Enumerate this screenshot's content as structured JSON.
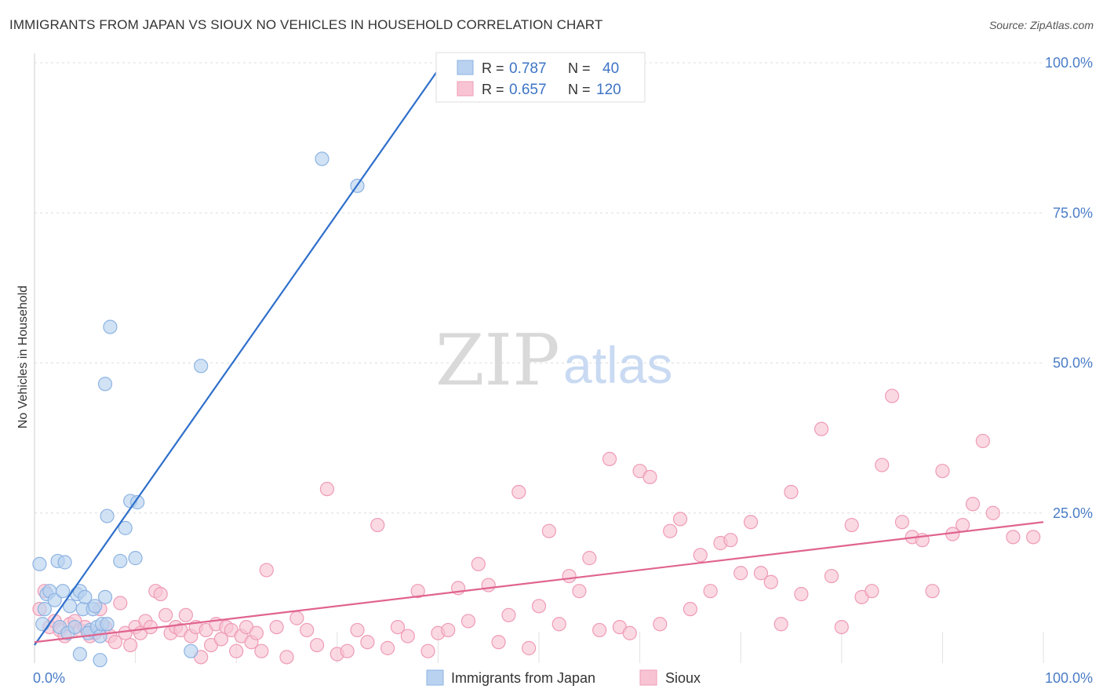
{
  "title": "IMMIGRANTS FROM JAPAN VS SIOUX NO VEHICLES IN HOUSEHOLD CORRELATION CHART",
  "source": "Source: ZipAtlas.com",
  "watermark": {
    "zip": "ZIP",
    "atlas": "atlas"
  },
  "colors": {
    "blue_fill": "#b9d2f0",
    "blue_stroke": "#8db3e2",
    "blue_line": "#2f6fcb",
    "pink_fill": "#f8c4d4",
    "pink_stroke": "#ef9bb6",
    "pink_line": "#e0648f",
    "grid": "#dcdcdc",
    "axis_text": "#4a7cc7"
  },
  "stats": [
    {
      "r_label": "R =",
      "r_value": "0.787",
      "n_label": "N =",
      "n_value": "40"
    },
    {
      "r_label": "R =",
      "r_value": "0.657",
      "n_label": "N =",
      "n_value": "120"
    }
  ],
  "chart_data": {
    "type": "scatter",
    "title": "IMMIGRANTS FROM JAPAN VS SIOUX NO VEHICLES IN HOUSEHOLD CORRELATION CHART",
    "xlabel": "",
    "ylabel": "No Vehicles in Household",
    "xlim": [
      0,
      100
    ],
    "ylim": [
      0,
      100
    ],
    "x_tick_labels": [
      "0.0%",
      "100.0%"
    ],
    "y_tick_labels": [
      "100.0%",
      "75.0%",
      "50.0%",
      "25.0%"
    ],
    "y_tick_values": [
      100,
      75,
      50,
      25
    ],
    "grid": true,
    "legend_position": "bottom",
    "series": [
      {
        "name": "Immigrants from Japan",
        "color": "blue",
        "points": [
          [
            0.5,
            16.5
          ],
          [
            1.0,
            9.0
          ],
          [
            1.2,
            11.5
          ],
          [
            1.5,
            12.0
          ],
          [
            2.0,
            10.5
          ],
          [
            2.3,
            17.0
          ],
          [
            2.5,
            6.0
          ],
          [
            2.8,
            12.0
          ],
          [
            3.0,
            16.8
          ],
          [
            3.3,
            5.0
          ],
          [
            3.5,
            9.5
          ],
          [
            4.0,
            6.0
          ],
          [
            4.2,
            11.5
          ],
          [
            4.5,
            12.0
          ],
          [
            4.8,
            9.0
          ],
          [
            4.5,
            1.5
          ],
          [
            5.0,
            11.0
          ],
          [
            5.5,
            5.5
          ],
          [
            5.3,
            5.0
          ],
          [
            5.8,
            9.0
          ],
          [
            6.0,
            9.5
          ],
          [
            6.2,
            6.0
          ],
          [
            6.5,
            0.5
          ],
          [
            6.5,
            4.5
          ],
          [
            6.7,
            6.5
          ],
          [
            7.0,
            46.5
          ],
          [
            7.2,
            24.5
          ],
          [
            7.0,
            11.0
          ],
          [
            7.2,
            6.5
          ],
          [
            7.5,
            56.0
          ],
          [
            8.5,
            17.0
          ],
          [
            9.0,
            22.5
          ],
          [
            9.5,
            27.0
          ],
          [
            10.0,
            17.5
          ],
          [
            10.2,
            26.8
          ],
          [
            15.5,
            2.0
          ],
          [
            16.5,
            49.5
          ],
          [
            28.5,
            84.0
          ],
          [
            32.0,
            79.5
          ],
          [
            0.8,
            6.5
          ]
        ],
        "trend": [
          [
            0,
            3.0
          ],
          [
            40.5,
            100
          ]
        ]
      },
      {
        "name": "Sioux",
        "color": "pink",
        "points": [
          [
            0.5,
            9.0
          ],
          [
            1.0,
            12.0
          ],
          [
            1.5,
            6.0
          ],
          [
            2.0,
            7.0
          ],
          [
            2.5,
            5.5
          ],
          [
            3.0,
            4.5
          ],
          [
            3.5,
            6.5
          ],
          [
            4.0,
            7.0
          ],
          [
            4.5,
            5.5
          ],
          [
            5.0,
            6.0
          ],
          [
            5.5,
            4.5
          ],
          [
            6.0,
            5.0
          ],
          [
            6.5,
            9.0
          ],
          [
            7.0,
            6.0
          ],
          [
            7.5,
            4.5
          ],
          [
            8.0,
            3.5
          ],
          [
            8.5,
            10.0
          ],
          [
            9.0,
            5.0
          ],
          [
            9.5,
            3.0
          ],
          [
            10.0,
            6.0
          ],
          [
            10.5,
            5.0
          ],
          [
            11.0,
            7.0
          ],
          [
            11.5,
            6.0
          ],
          [
            12.0,
            12.0
          ],
          [
            12.5,
            11.5
          ],
          [
            13.0,
            8.0
          ],
          [
            13.5,
            5.0
          ],
          [
            14.0,
            6.0
          ],
          [
            14.5,
            5.5
          ],
          [
            15.0,
            8.0
          ],
          [
            15.5,
            4.5
          ],
          [
            16.0,
            6.0
          ],
          [
            16.5,
            1.0
          ],
          [
            17.0,
            5.5
          ],
          [
            17.5,
            3.0
          ],
          [
            18.0,
            6.5
          ],
          [
            18.5,
            4.0
          ],
          [
            19.0,
            6.0
          ],
          [
            19.5,
            5.5
          ],
          [
            20.0,
            2.0
          ],
          [
            20.5,
            4.5
          ],
          [
            21.0,
            6.0
          ],
          [
            21.5,
            3.5
          ],
          [
            22.0,
            5.0
          ],
          [
            22.5,
            2.0
          ],
          [
            23.0,
            15.5
          ],
          [
            24.0,
            6.0
          ],
          [
            25.0,
            1.0
          ],
          [
            26.0,
            7.5
          ],
          [
            27.0,
            5.5
          ],
          [
            28.0,
            3.0
          ],
          [
            29.0,
            29.0
          ],
          [
            30.0,
            1.5
          ],
          [
            31.0,
            2.0
          ],
          [
            32.0,
            5.5
          ],
          [
            33.0,
            3.5
          ],
          [
            34.0,
            23.0
          ],
          [
            35.0,
            2.5
          ],
          [
            36.0,
            6.0
          ],
          [
            37.0,
            4.5
          ],
          [
            38.0,
            12.0
          ],
          [
            39.0,
            2.0
          ],
          [
            40.0,
            5.0
          ],
          [
            41.0,
            5.5
          ],
          [
            42.0,
            12.5
          ],
          [
            43.0,
            7.0
          ],
          [
            44.0,
            16.5
          ],
          [
            45.0,
            13.0
          ],
          [
            46.0,
            3.5
          ],
          [
            47.0,
            8.0
          ],
          [
            48.0,
            28.5
          ],
          [
            49.0,
            2.5
          ],
          [
            50.0,
            9.5
          ],
          [
            51.0,
            22.0
          ],
          [
            52.0,
            6.5
          ],
          [
            53.0,
            14.5
          ],
          [
            54.0,
            12.0
          ],
          [
            55.0,
            17.5
          ],
          [
            56.0,
            5.5
          ],
          [
            57.0,
            34.0
          ],
          [
            58.0,
            6.0
          ],
          [
            59.0,
            5.0
          ],
          [
            60.0,
            32.0
          ],
          [
            61.0,
            31.0
          ],
          [
            62.0,
            6.5
          ],
          [
            63.0,
            22.0
          ],
          [
            64.0,
            24.0
          ],
          [
            65.0,
            9.0
          ],
          [
            66.0,
            18.0
          ],
          [
            67.0,
            12.0
          ],
          [
            68.0,
            20.0
          ],
          [
            69.0,
            20.5
          ],
          [
            70.0,
            15.0
          ],
          [
            71.0,
            23.5
          ],
          [
            72.0,
            15.0
          ],
          [
            73.0,
            13.5
          ],
          [
            74.0,
            6.5
          ],
          [
            75.0,
            28.5
          ],
          [
            76.0,
            11.5
          ],
          [
            78.0,
            39.0
          ],
          [
            79.0,
            14.5
          ],
          [
            80.0,
            6.0
          ],
          [
            81.0,
            23.0
          ],
          [
            82.0,
            11.0
          ],
          [
            83.0,
            12.0
          ],
          [
            84.0,
            33.0
          ],
          [
            85.0,
            44.5
          ],
          [
            86.0,
            23.5
          ],
          [
            87.0,
            21.0
          ],
          [
            88.0,
            20.5
          ],
          [
            89.0,
            12.0
          ],
          [
            90.0,
            32.0
          ],
          [
            91.0,
            21.5
          ],
          [
            92.0,
            23.0
          ],
          [
            93.0,
            26.5
          ],
          [
            94.0,
            37.0
          ],
          [
            95.0,
            25.0
          ],
          [
            97.0,
            21.0
          ],
          [
            99.0,
            21.0
          ]
        ],
        "trend": [
          [
            0,
            3.5
          ],
          [
            100,
            23.5
          ]
        ]
      }
    ]
  }
}
